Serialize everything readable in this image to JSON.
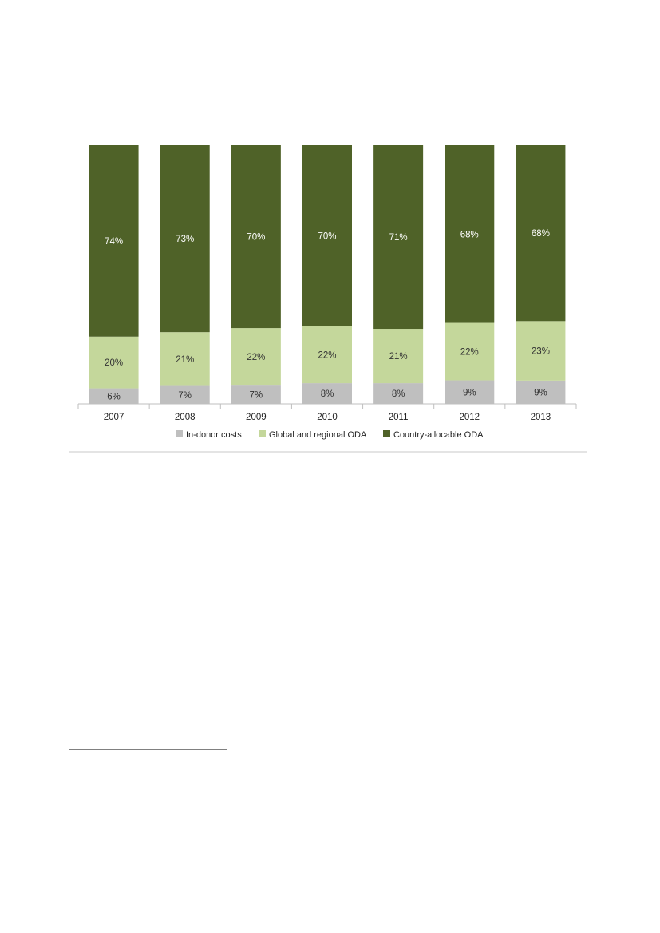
{
  "chart_data": {
    "type": "bar",
    "stacked": true,
    "normalized_percent": true,
    "categories": [
      "2007",
      "2008",
      "2009",
      "2010",
      "2011",
      "2012",
      "2013"
    ],
    "series": [
      {
        "name": "In-donor costs",
        "color": "#bfbfbf",
        "values": [
          6,
          7,
          7,
          8,
          8,
          9,
          9
        ],
        "labels": [
          "6%",
          "7%",
          "7%",
          "8%",
          "8%",
          "9%",
          "9%"
        ]
      },
      {
        "name": "Global and regional ODA",
        "color": "#c4d79b",
        "values": [
          20,
          21,
          22,
          22,
          21,
          22,
          23
        ],
        "labels": [
          "20%",
          "21%",
          "22%",
          "22%",
          "21%",
          "22%",
          "23%"
        ]
      },
      {
        "name": "Country-allocable ODA",
        "color": "#4f6228",
        "values": [
          74,
          73,
          70,
          70,
          71,
          68,
          68
        ],
        "labels": [
          "74%",
          "73%",
          "70%",
          "70%",
          "71%",
          "68%",
          "68%"
        ]
      }
    ],
    "ylim": [
      0,
      100
    ],
    "grid": false,
    "legend_position": "bottom"
  }
}
